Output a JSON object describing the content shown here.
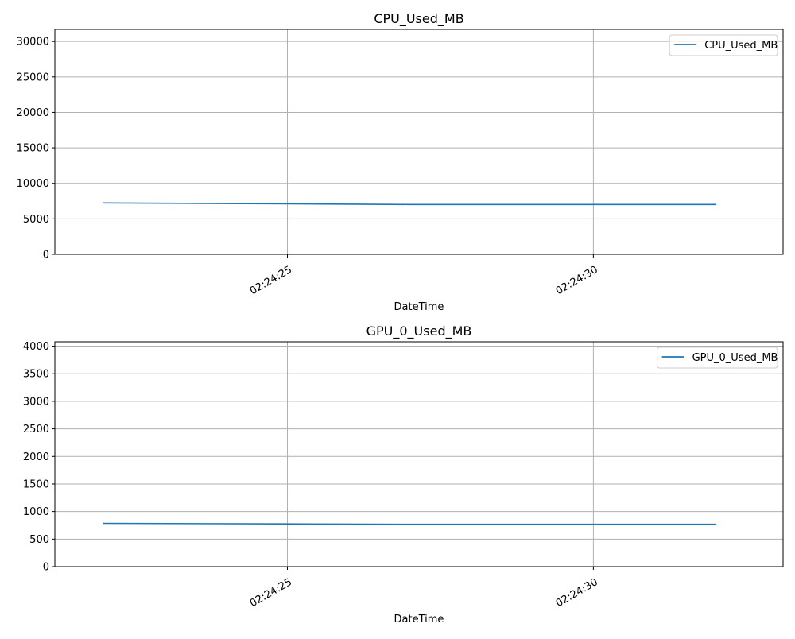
{
  "chart_data": [
    {
      "type": "line",
      "title": "CPU_Used_MB",
      "xlabel": "DateTime",
      "ylabel": "",
      "x": [
        "02:24:22",
        "02:24:25",
        "02:24:27",
        "02:24:30",
        "02:24:32"
      ],
      "x_tick_labels": [
        "02:24:25",
        "02:24:30"
      ],
      "y_ticks": [
        0,
        5000,
        10000,
        15000,
        20000,
        25000,
        30000
      ],
      "ylim": [
        0,
        31700
      ],
      "xlim": [
        "02:24:21.2",
        "02:24:33.1"
      ],
      "grid": true,
      "legend_position": "top-right",
      "series": [
        {
          "name": "CPU_Used_MB",
          "color": "#1f77b4",
          "values": [
            7250,
            7110,
            7020,
            7020,
            7020
          ]
        }
      ]
    },
    {
      "type": "line",
      "title": "GPU_0_Used_MB",
      "xlabel": "DateTime",
      "ylabel": "",
      "x": [
        "02:24:22",
        "02:24:25",
        "02:24:27",
        "02:24:30",
        "02:24:32"
      ],
      "x_tick_labels": [
        "02:24:25",
        "02:24:30"
      ],
      "y_ticks": [
        0,
        500,
        1000,
        1500,
        2000,
        2500,
        3000,
        3500,
        4000
      ],
      "ylim": [
        0,
        4080
      ],
      "xlim": [
        "02:24:21.2",
        "02:24:33.1"
      ],
      "grid": true,
      "legend_position": "top-right",
      "series": [
        {
          "name": "GPU_0_Used_MB",
          "color": "#1f77b4",
          "values": [
            786,
            775,
            768,
            768,
            768
          ]
        }
      ]
    }
  ]
}
